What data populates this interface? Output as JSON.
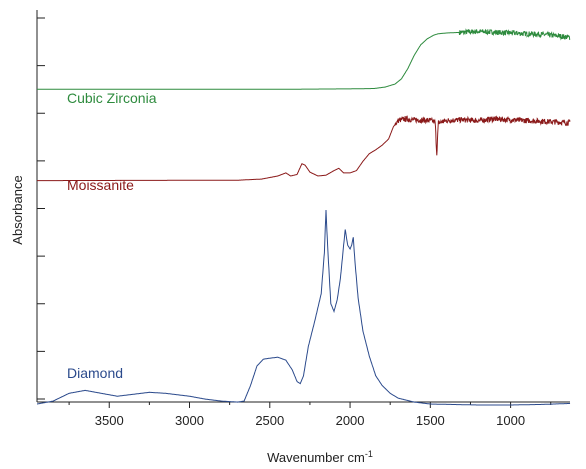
{
  "chart_data": {
    "type": "line",
    "title": "",
    "xlabel": "Wavenumber cm",
    "xlabel_superscript": "-1",
    "ylabel": "Absorbance",
    "xlim": [
      3950,
      630
    ],
    "x_reversed": true,
    "x_ticks": [
      3500,
      3000,
      2500,
      2000,
      1500,
      1000
    ],
    "y_tick_count": 9,
    "grid": false,
    "legend": "inline-labels",
    "series": [
      {
        "name": "Cubic Zirconia",
        "color": "#2e8b3e",
        "noise": 0,
        "noise_from": 1320,
        "points": [
          [
            3950,
            0.24
          ],
          [
            2400,
            0.24
          ],
          [
            2000,
            0.245
          ],
          [
            1850,
            0.25
          ],
          [
            1780,
            0.27
          ],
          [
            1720,
            0.31
          ],
          [
            1680,
            0.38
          ],
          [
            1640,
            0.52
          ],
          [
            1600,
            0.7
          ],
          [
            1560,
            0.84
          ],
          [
            1520,
            0.92
          ],
          [
            1480,
            0.97
          ],
          [
            1450,
            0.99
          ],
          [
            1400,
            1.0
          ],
          [
            1300,
            1.01
          ],
          [
            1200,
            1.02
          ],
          [
            1100,
            1.01
          ],
          [
            1000,
            1.0
          ],
          [
            900,
            0.99
          ],
          [
            800,
            0.98
          ],
          [
            700,
            0.96
          ],
          [
            630,
            0.94
          ]
        ]
      },
      {
        "name": "Moissanite",
        "color": "#8b1a1a",
        "noise": 0,
        "noise_from": 1720,
        "points": [
          [
            3950,
            0.2
          ],
          [
            2700,
            0.205
          ],
          [
            2550,
            0.22
          ],
          [
            2450,
            0.26
          ],
          [
            2400,
            0.3
          ],
          [
            2370,
            0.26
          ],
          [
            2330,
            0.28
          ],
          [
            2300,
            0.42
          ],
          [
            2280,
            0.4
          ],
          [
            2250,
            0.31
          ],
          [
            2200,
            0.26
          ],
          [
            2150,
            0.27
          ],
          [
            2100,
            0.33
          ],
          [
            2070,
            0.36
          ],
          [
            2040,
            0.3
          ],
          [
            2000,
            0.3
          ],
          [
            1960,
            0.33
          ],
          [
            1920,
            0.45
          ],
          [
            1880,
            0.55
          ],
          [
            1840,
            0.6
          ],
          [
            1800,
            0.66
          ],
          [
            1760,
            0.74
          ],
          [
            1730,
            0.9
          ],
          [
            1700,
            0.98
          ],
          [
            1660,
            1.0
          ],
          [
            1600,
            0.99
          ],
          [
            1500,
            0.98
          ],
          [
            1470,
            0.96
          ],
          [
            1460,
            0.55
          ],
          [
            1450,
            0.95
          ],
          [
            1400,
            0.98
          ],
          [
            1300,
            0.99
          ],
          [
            1200,
            0.98
          ],
          [
            1100,
            1.0
          ],
          [
            1000,
            0.99
          ],
          [
            900,
            0.98
          ],
          [
            800,
            0.97
          ],
          [
            700,
            0.96
          ],
          [
            630,
            0.95
          ]
        ]
      },
      {
        "name": "Diamond",
        "color": "#2b4a8c",
        "noise": 0,
        "noise_from": 0,
        "points": [
          [
            3950,
            0.005
          ],
          [
            3850,
            0.02
          ],
          [
            3750,
            0.06
          ],
          [
            3650,
            0.075
          ],
          [
            3550,
            0.06
          ],
          [
            3450,
            0.045
          ],
          [
            3350,
            0.055
          ],
          [
            3250,
            0.065
          ],
          [
            3150,
            0.06
          ],
          [
            3000,
            0.045
          ],
          [
            2900,
            0.03
          ],
          [
            2800,
            0.02
          ],
          [
            2700,
            0.015
          ],
          [
            2660,
            0.02
          ],
          [
            2620,
            0.1
          ],
          [
            2580,
            0.2
          ],
          [
            2540,
            0.235
          ],
          [
            2500,
            0.24
          ],
          [
            2450,
            0.245
          ],
          [
            2400,
            0.23
          ],
          [
            2360,
            0.18
          ],
          [
            2330,
            0.12
          ],
          [
            2310,
            0.11
          ],
          [
            2290,
            0.15
          ],
          [
            2260,
            0.3
          ],
          [
            2220,
            0.43
          ],
          [
            2200,
            0.5
          ],
          [
            2180,
            0.57
          ],
          [
            2160,
            0.78
          ],
          [
            2150,
            1.0
          ],
          [
            2140,
            0.82
          ],
          [
            2120,
            0.52
          ],
          [
            2100,
            0.48
          ],
          [
            2080,
            0.54
          ],
          [
            2060,
            0.65
          ],
          [
            2040,
            0.82
          ],
          [
            2030,
            0.9
          ],
          [
            2015,
            0.82
          ],
          [
            2000,
            0.8
          ],
          [
            1990,
            0.82
          ],
          [
            1980,
            0.86
          ],
          [
            1970,
            0.74
          ],
          [
            1950,
            0.55
          ],
          [
            1920,
            0.38
          ],
          [
            1880,
            0.25
          ],
          [
            1840,
            0.15
          ],
          [
            1800,
            0.1
          ],
          [
            1750,
            0.06
          ],
          [
            1700,
            0.035
          ],
          [
            1600,
            0.015
          ],
          [
            1500,
            0.005
          ],
          [
            1200,
            0.0
          ],
          [
            1000,
            0.0
          ],
          [
            800,
            0.003
          ],
          [
            630,
            0.008
          ]
        ]
      }
    ]
  }
}
